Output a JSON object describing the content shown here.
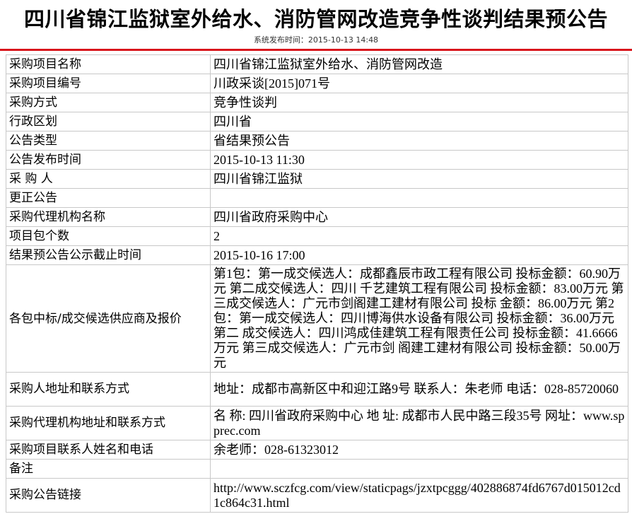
{
  "header": {
    "title": "四川省锦江监狱室外给水、消防管网改造竞争性谈判结果预公告",
    "publish_time": "系统发布时间：2015-10-13 14:48",
    "accent_color": "#d9161c"
  },
  "rows": [
    {
      "label": "采购项目名称",
      "value": "四川省锦江监狱室外给水、消防管网改造"
    },
    {
      "label": "采购项目编号",
      "value": "川政采谈[2015]071号"
    },
    {
      "label": "采购方式",
      "value": "竞争性谈判"
    },
    {
      "label": "行政区划",
      "value": "四川省"
    },
    {
      "label": "公告类型",
      "value": "省结果预公告"
    },
    {
      "label": "公告发布时间",
      "value": "2015-10-13 11:30"
    },
    {
      "label": "采 购 人",
      "value": "四川省锦江监狱"
    },
    {
      "label": "更正公告",
      "value": ""
    },
    {
      "label": "采购代理机构名称",
      "value": "四川省政府采购中心"
    },
    {
      "label": "项目包个数",
      "value": "2"
    },
    {
      "label": "结果预公告公示截止时间",
      "value": "2015-10-16 17:00"
    },
    {
      "label": "各包中标/成交候选供应商及报价",
      "value": "第1包：第一成交候选人：成都鑫辰市政工程有限公司 投标金额：60.90万元 第二成交候选人：四川 千艺建筑工程有限公司 投标金额：83.00万元 第三成交候选人：广元市剑阁建工建材有限公司 投标 金额：86.00万元 第2包：第一成交候选人：四川博海供水设备有限公司 投标金额：36.00万元 第二 成交候选人：四川鸿成佳建筑工程有限责任公司 投标金额：41.6666万元 第三成交候选人：广元市剑 阁建工建材有限公司 投标金额：50.00万元"
    },
    {
      "label": "采购人地址和联系方式",
      "value": "地址：成都市高新区中和迎江路9号 联系人：朱老师 电话：028-85720060"
    },
    {
      "label": "采购代理机构地址和联系方式",
      "value": "名 称: 四川省政府采购中心 地 址: 成都市人民中路三段35号 网址：www.spprec.com"
    },
    {
      "label": "采购项目联系人姓名和电话",
      "value": "余老师：028-61323012"
    },
    {
      "label": "备注",
      "value": ""
    },
    {
      "label": "采购公告链接",
      "value": "http://www.sczfcg.com/view/staticpags/jzxtpcggg/402886874fd6767d015012cd1c864c31.html"
    }
  ]
}
